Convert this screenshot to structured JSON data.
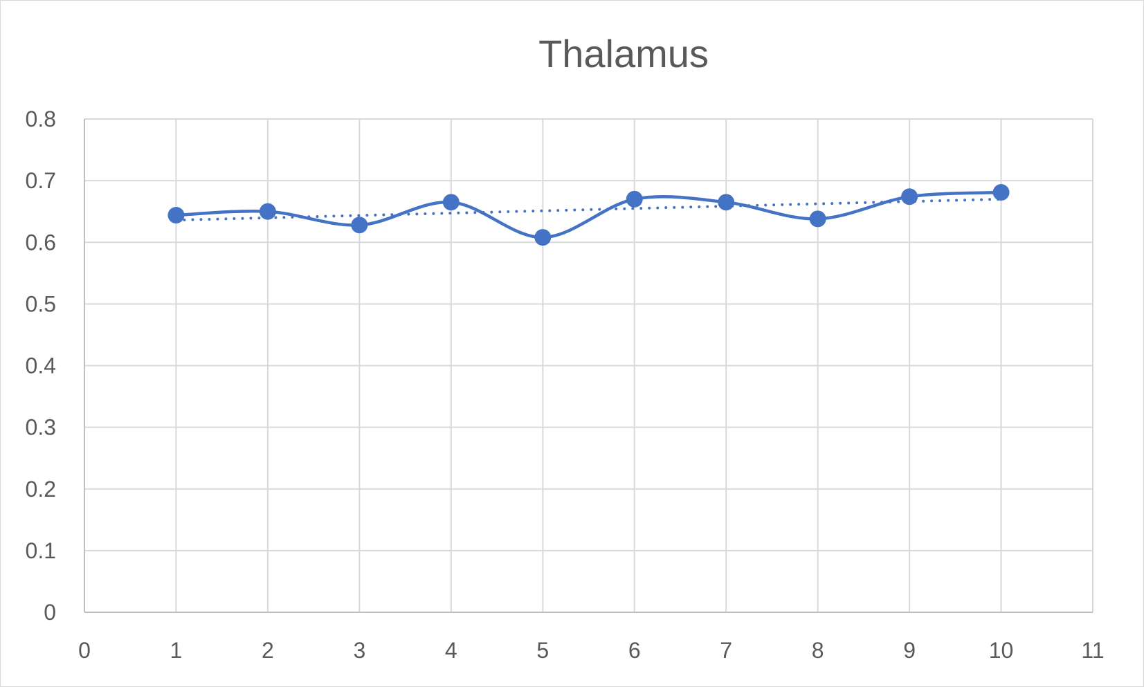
{
  "chart_data": {
    "type": "scatter",
    "title": "Thalamus",
    "xlabel": "",
    "ylabel": "",
    "xlim": [
      0,
      11
    ],
    "ylim": [
      0,
      0.8
    ],
    "x_ticks": [
      0,
      1,
      2,
      3,
      4,
      5,
      6,
      7,
      8,
      9,
      10,
      11
    ],
    "y_ticks": [
      0,
      0.1,
      0.2,
      0.3,
      0.4,
      0.5,
      0.6,
      0.7,
      0.8
    ],
    "grid": true,
    "legend": "none",
    "series": [
      {
        "style": "smooth line with markers",
        "color": "#4472c4",
        "x": [
          1,
          2,
          3,
          4,
          5,
          6,
          7,
          8,
          9,
          10
        ],
        "y": [
          0.644,
          0.65,
          0.628,
          0.665,
          0.608,
          0.67,
          0.665,
          0.638,
          0.674,
          0.681
        ]
      }
    ],
    "trendline": {
      "type": "linear",
      "style": "dotted",
      "color": "#4472c4",
      "x": [
        1,
        10
      ],
      "y": [
        0.636,
        0.67
      ]
    }
  }
}
